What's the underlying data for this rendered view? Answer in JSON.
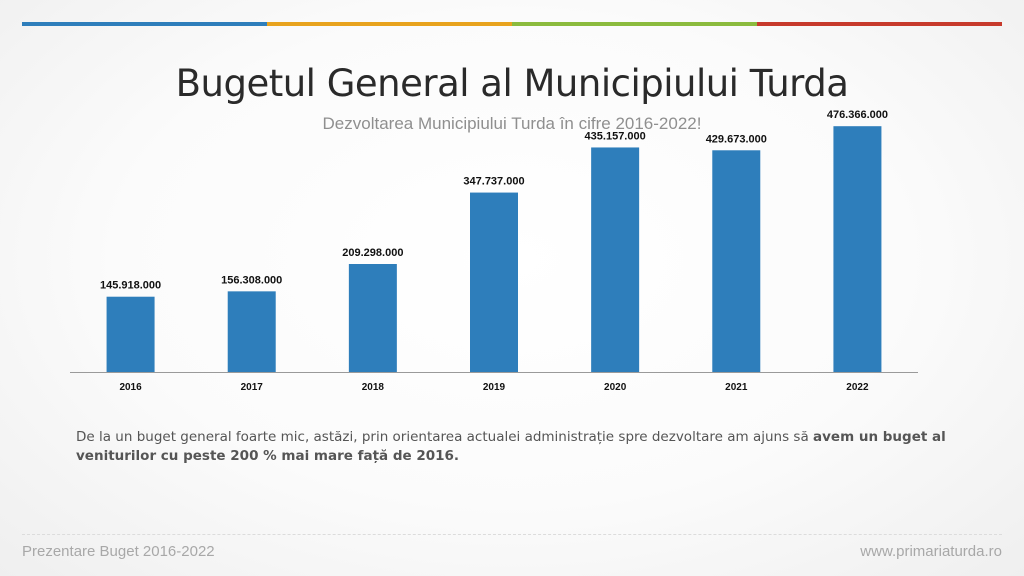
{
  "colors": {
    "bar": "#2e7ebb",
    "topbar": [
      "#2e7ebb",
      "#e8a31e",
      "#8bbb3e",
      "#c73a2c"
    ]
  },
  "header": {
    "title": "Bugetul General al Municipiului Turda",
    "subtitle": "Dezvoltarea Municipiului Turda în cifre 2016-2022!"
  },
  "chart_data": {
    "type": "bar",
    "categories": [
      "2016",
      "2017",
      "2018",
      "2019",
      "2020",
      "2021",
      "2022"
    ],
    "values": [
      145918000,
      156308000,
      209298000,
      347737000,
      435157000,
      429673000,
      476366000
    ],
    "value_labels": [
      "145.918.000",
      "156.308.000",
      "209.298.000",
      "347.737.000",
      "435.157.000",
      "429.673.000",
      "476.366.000"
    ],
    "ylim": [
      0,
      500000000
    ],
    "grid": false,
    "legend": "none"
  },
  "description": {
    "normal": "De la un buget general foarte mic, astăzi, prin orientarea actualei administrație spre dezvoltare am ajuns să ",
    "bold": "avem un buget al veniturilor cu peste 200 % mai mare față de 2016."
  },
  "footer": {
    "left": "Prezentare Buget 2016-2022",
    "right": "www.primariaturda.ro"
  }
}
